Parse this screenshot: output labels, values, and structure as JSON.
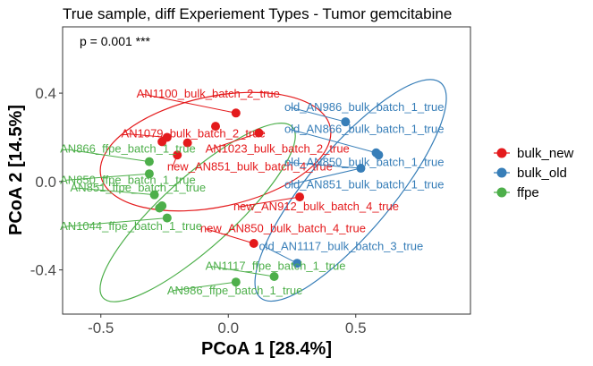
{
  "chart_data": {
    "type": "scatter",
    "title": "True sample, diff Experiement Types - Tumor gemcitabine",
    "xlabel": "PCoA 1 [28.4%]",
    "ylabel": "PCoA 2 [14.5%]",
    "xlim": [
      -0.65,
      0.95
    ],
    "ylim": [
      -0.6,
      0.7
    ],
    "xticks": [
      -0.5,
      0.0,
      0.5
    ],
    "xtick_labels": [
      "-0.5",
      "0.0",
      "0.5"
    ],
    "yticks": [
      -0.4,
      0.0,
      0.4
    ],
    "ytick_labels": [
      "-0.4",
      "0.0",
      "0.4"
    ],
    "grid": false,
    "legend_position": "right",
    "annotation": "p = 0.001 ***",
    "series": [
      {
        "name": "bulk_new",
        "color": "#e41a1c",
        "points": [
          {
            "x": 0.03,
            "y": 0.31
          },
          {
            "x": -0.05,
            "y": 0.25
          },
          {
            "x": -0.24,
            "y": 0.2
          },
          {
            "x": -0.26,
            "y": 0.18
          },
          {
            "x": -0.16,
            "y": 0.175
          },
          {
            "x": 0.12,
            "y": 0.22
          },
          {
            "x": -0.2,
            "y": 0.12
          },
          {
            "x": 0.28,
            "y": -0.07
          },
          {
            "x": 0.1,
            "y": -0.28
          }
        ],
        "labels": [
          {
            "text": "AN1100_bulk_batch_2_true",
            "x": -0.36,
            "y": 0.38,
            "lx": 0.03,
            "ly": 0.31
          },
          {
            "text": "AN1079_bulk_batch_2_true",
            "x": -0.42,
            "y": 0.2,
            "lx": -0.24,
            "ly": 0.2
          },
          {
            "text": "AN1023_bulk_batch_2_true",
            "x": -0.09,
            "y": 0.13,
            "lx": 0.12,
            "ly": 0.22
          },
          {
            "text": "new_AN851_bulk_batch_4_true",
            "x": -0.24,
            "y": 0.05,
            "lx": -0.2,
            "ly": 0.12
          },
          {
            "text": "new_AN912_bulk_batch_4_true",
            "x": 0.02,
            "y": -0.13,
            "lx": 0.28,
            "ly": -0.07
          },
          {
            "text": "new_AN850_bulk_batch_4_true",
            "x": -0.11,
            "y": -0.23,
            "lx": 0.1,
            "ly": -0.28
          }
        ]
      },
      {
        "name": "bulk_old",
        "color": "#377eb8",
        "points": [
          {
            "x": 0.46,
            "y": 0.27
          },
          {
            "x": 0.58,
            "y": 0.13
          },
          {
            "x": 0.59,
            "y": 0.12
          },
          {
            "x": 0.52,
            "y": 0.06
          },
          {
            "x": 0.27,
            "y": -0.37
          }
        ],
        "labels": [
          {
            "text": "old_AN986_bulk_batch_1_true",
            "x": 0.22,
            "y": 0.32,
            "lx": 0.46,
            "ly": 0.27
          },
          {
            "text": "old_AN866_bulk_batch_1_true",
            "x": 0.22,
            "y": 0.22,
            "lx": 0.58,
            "ly": 0.13
          },
          {
            "text": "old_AN850_bulk_batch_1_true",
            "x": 0.22,
            "y": 0.07,
            "lx": 0.52,
            "ly": 0.06
          },
          {
            "text": "old_AN851_bulk_batch_1_true",
            "x": 0.22,
            "y": -0.03,
            "lx": 0.52,
            "ly": 0.06
          },
          {
            "text": "old_AN1117_bulk_batch_3_true",
            "x": 0.12,
            "y": -0.31,
            "lx": 0.27,
            "ly": -0.37
          }
        ]
      },
      {
        "name": "ffpe",
        "color": "#4daf4a",
        "points": [
          {
            "x": -0.31,
            "y": 0.09
          },
          {
            "x": -0.31,
            "y": 0.035
          },
          {
            "x": -0.29,
            "y": -0.06
          },
          {
            "x": -0.27,
            "y": -0.12
          },
          {
            "x": -0.26,
            "y": -0.11
          },
          {
            "x": -0.24,
            "y": -0.165
          },
          {
            "x": 0.18,
            "y": -0.43
          },
          {
            "x": 0.03,
            "y": -0.455
          }
        ],
        "labels": [
          {
            "text": "AN866_ffpe_batch_1_true",
            "x": -0.66,
            "y": 0.13,
            "lx": -0.31,
            "ly": 0.09
          },
          {
            "text": "AN850_ffpe_batch_1_true",
            "x": -0.66,
            "y": -0.01,
            "lx": -0.31,
            "ly": 0.035
          },
          {
            "text": "AN851_ffpe_batch_1_true",
            "x": -0.62,
            "y": -0.045,
            "lx": -0.29,
            "ly": -0.06
          },
          {
            "text": "AN1044_ffpe_batch_1_true",
            "x": -0.66,
            "y": -0.22,
            "lx": -0.24,
            "ly": -0.165
          },
          {
            "text": "AN1117_ffpe_batch_1_true",
            "x": -0.09,
            "y": -0.4,
            "lx": 0.18,
            "ly": -0.43
          },
          {
            "text": "AN986_ffpe_batch_1_true",
            "x": -0.24,
            "y": -0.51,
            "lx": 0.03,
            "ly": -0.455
          }
        ]
      }
    ],
    "ellipses": [
      {
        "series": "bulk_new",
        "color": "#e41a1c",
        "cx": -0.05,
        "cy": 0.135,
        "rx": 0.46,
        "ry": 0.25,
        "angle_deg": -12
      },
      {
        "series": "bulk_old",
        "color": "#377eb8",
        "cx": 0.48,
        "cy": -0.04,
        "rx": 0.55,
        "ry": 0.19,
        "angle_deg": -50
      },
      {
        "series": "ffpe",
        "color": "#4daf4a",
        "cx": -0.12,
        "cy": -0.14,
        "rx": 0.5,
        "ry": 0.16,
        "angle_deg": -42
      }
    ]
  }
}
